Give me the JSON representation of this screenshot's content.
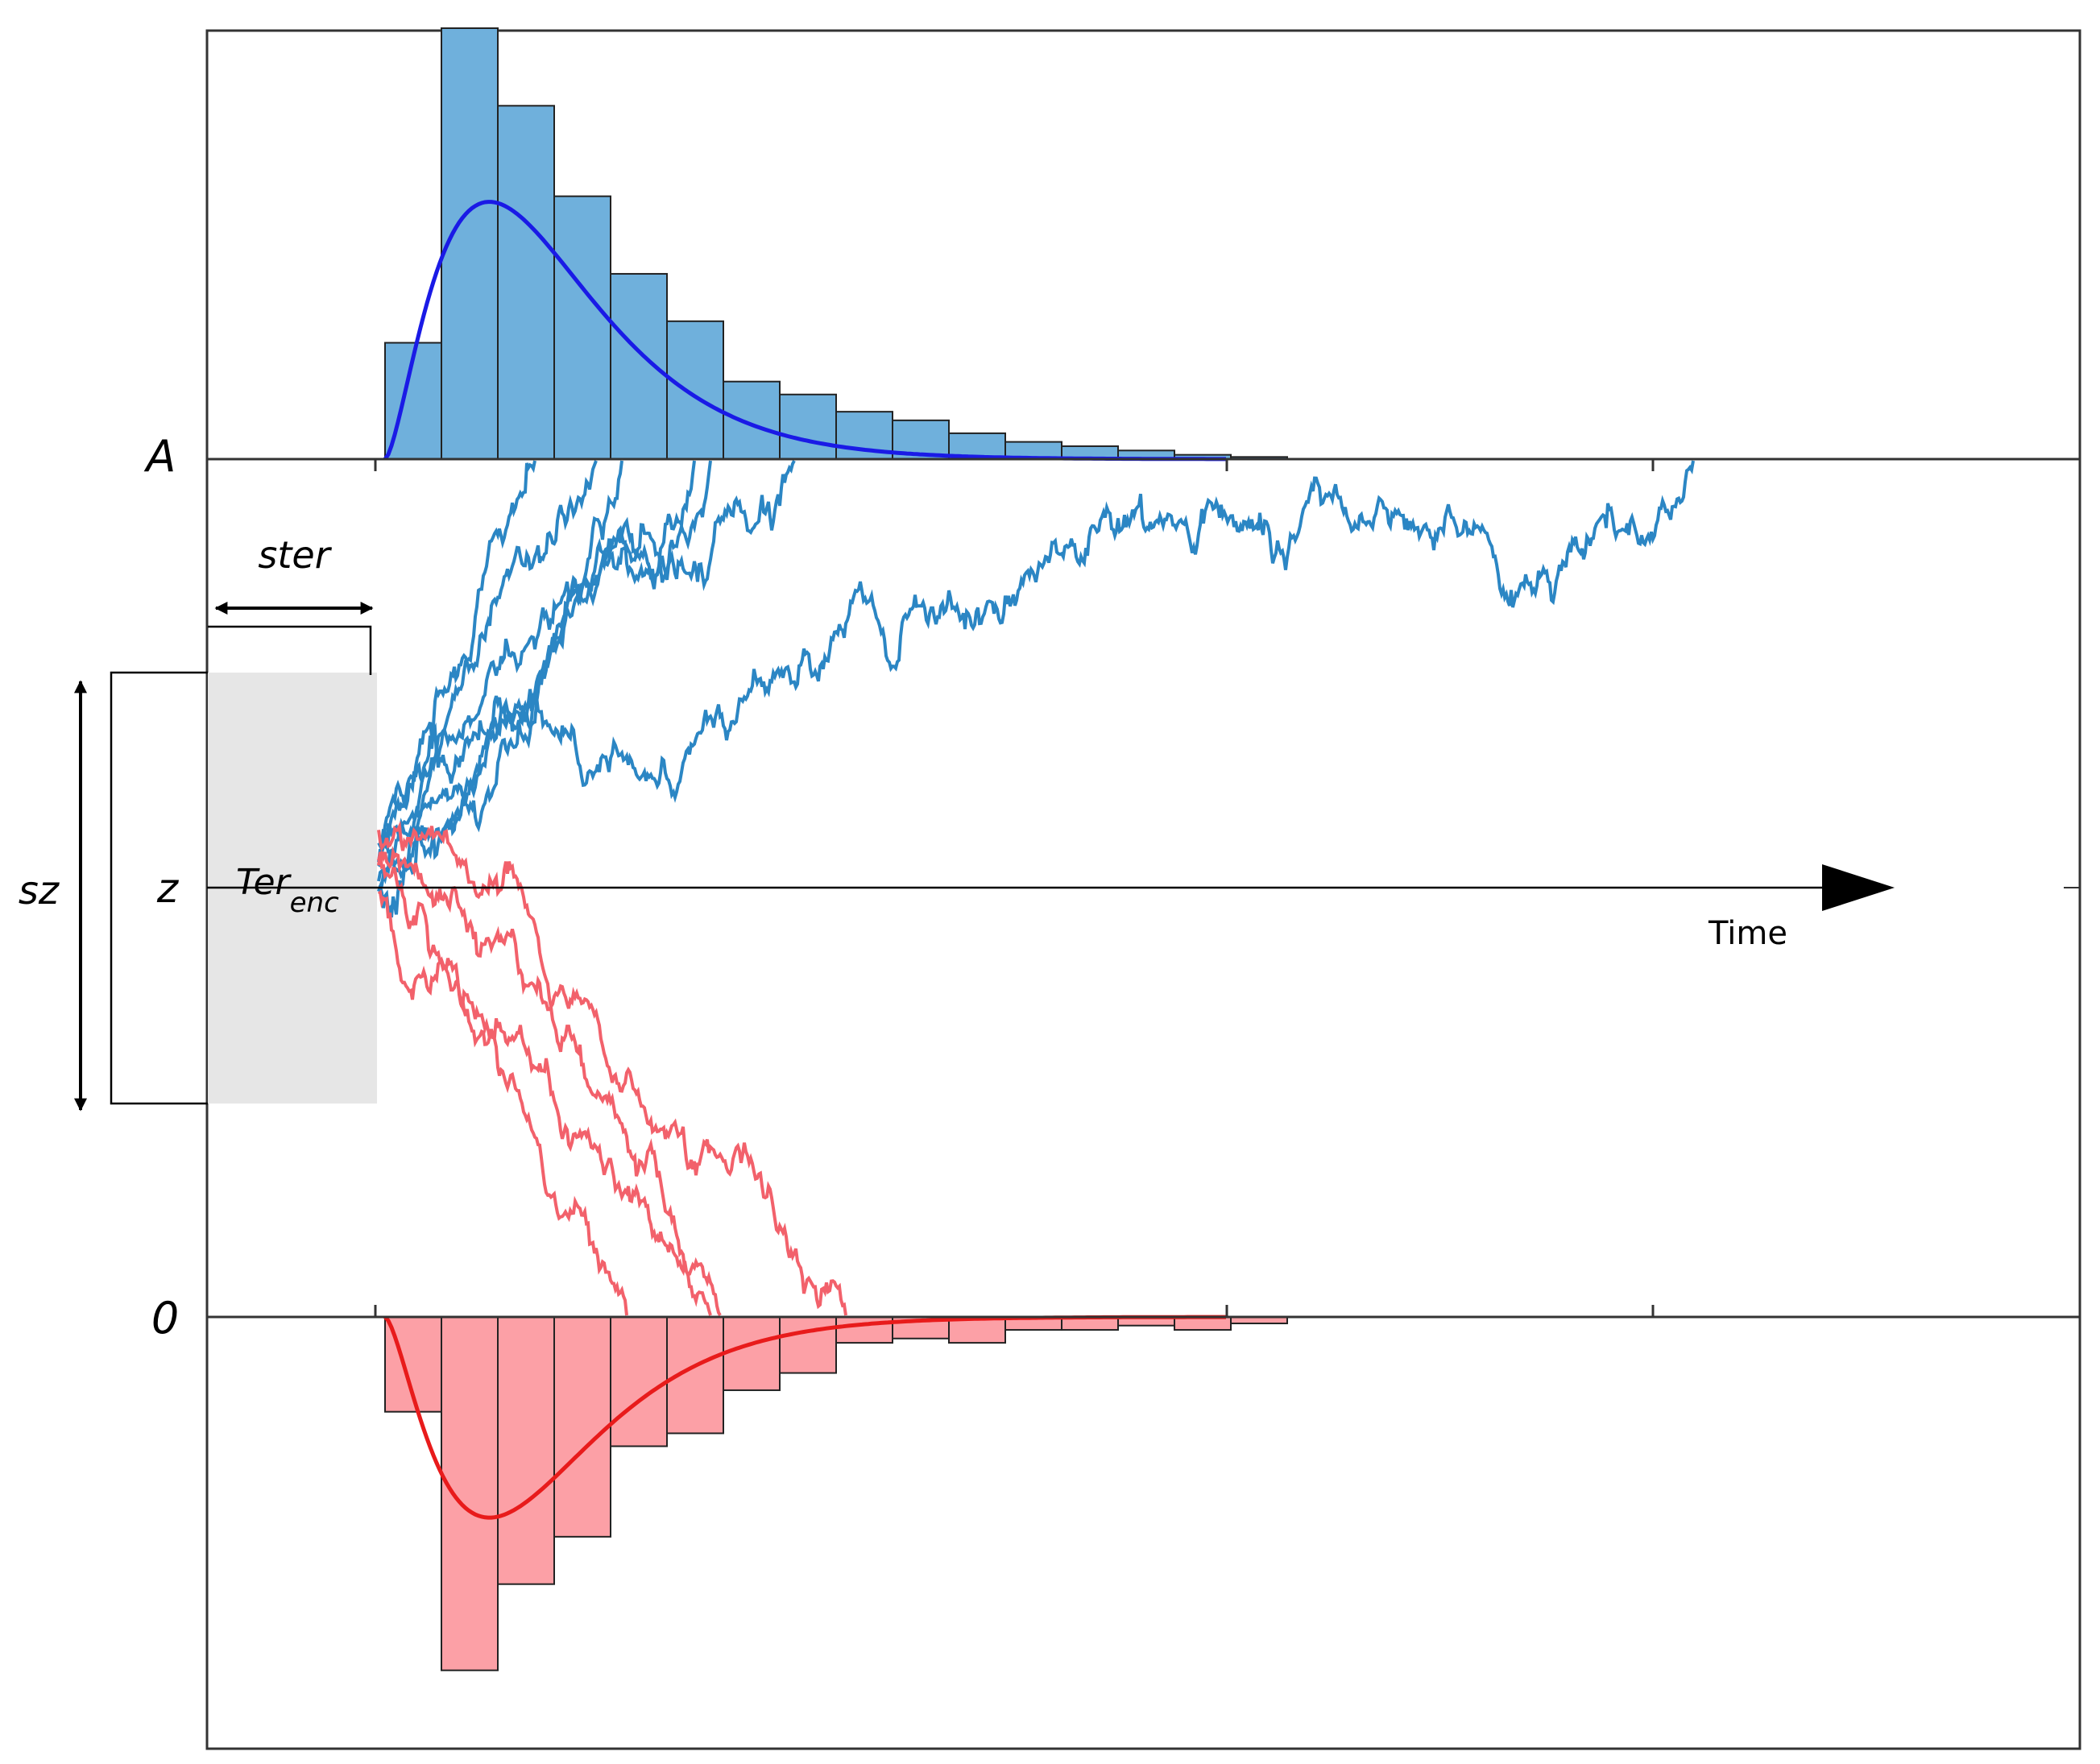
{
  "labels": {
    "upper_boundary": "A",
    "lower_boundary": "0",
    "start_point": "z",
    "start_variability": "sz",
    "nondecision_variability": "ster",
    "nondecision_time_base": "Ter",
    "nondecision_time_sub": "enc",
    "time_axis": "Time"
  },
  "colors": {
    "upper_hist_fill": "#6fb0dc",
    "upper_density": "#1a1ae6",
    "upper_paths": "#2b86c4",
    "lower_hist_fill": "#fca0a6",
    "lower_density": "#e81b1b",
    "lower_paths": "#f2616b",
    "nondecision_box": "#e6e6e6"
  },
  "histograms": {
    "upper_heights": [
      0.27,
      1.0,
      0.82,
      0.61,
      0.43,
      0.32,
      0.18,
      0.15,
      0.11,
      0.09,
      0.06,
      0.04,
      0.03,
      0.02,
      0.01,
      0.005,
      0.0,
      0.0,
      0.0,
      0.0,
      0.0,
      0.0,
      0.0
    ],
    "lower_heights": [
      0.22,
      0.82,
      0.62,
      0.51,
      0.3,
      0.27,
      0.17,
      0.13,
      0.06,
      0.05,
      0.06,
      0.03,
      0.03,
      0.02,
      0.03,
      0.015,
      0.0,
      0.0,
      0.0,
      0.0,
      0.0,
      0.0,
      0.0
    ]
  }
}
